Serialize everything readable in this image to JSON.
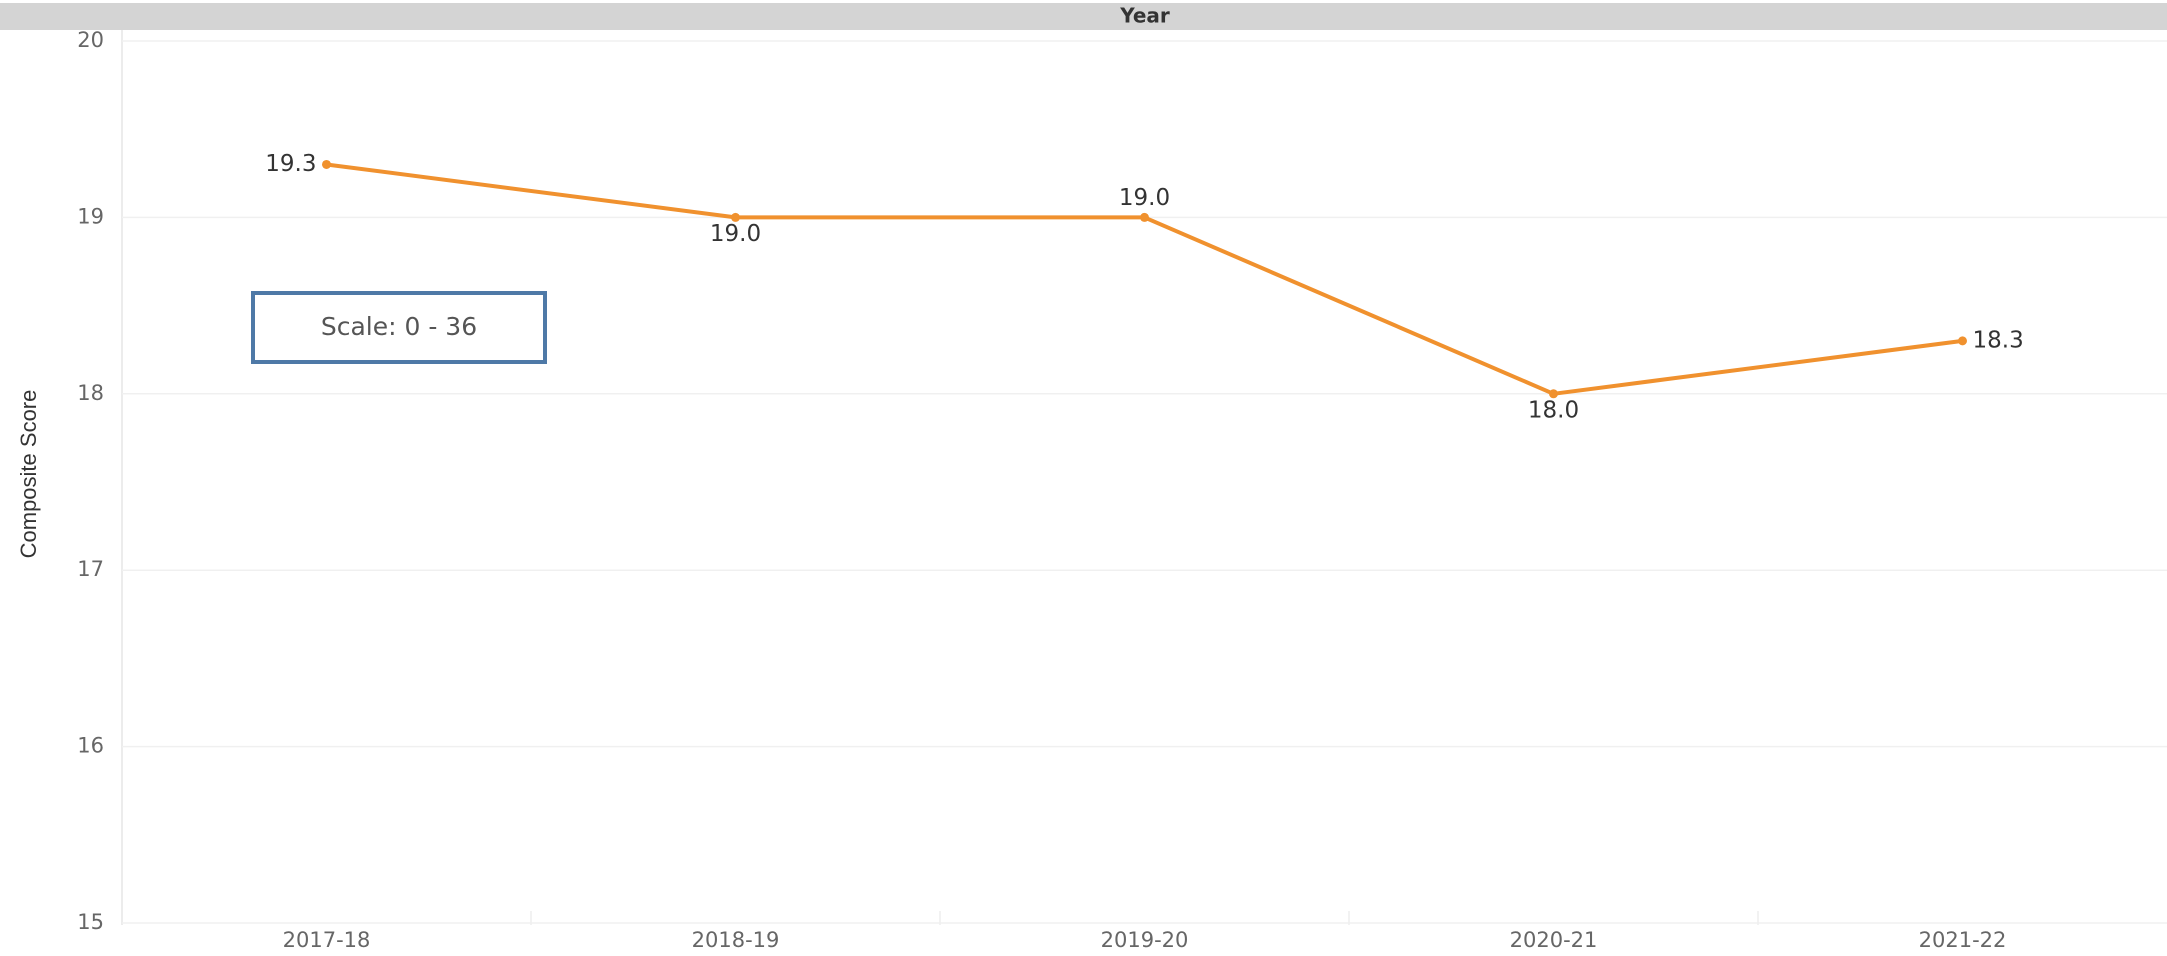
{
  "chart_data": {
    "type": "line",
    "x_axis_title": "Year",
    "y_axis_title": "Composite Score",
    "annotation": "Scale: 0 - 36",
    "categories": [
      "2017-18",
      "2018-19",
      "2019-20",
      "2020-21",
      "2021-22"
    ],
    "values": [
      19.3,
      19.0,
      19.0,
      18.0,
      18.3
    ],
    "value_labels": [
      "19.3",
      "19.0",
      "19.0",
      "18.0",
      "18.3"
    ],
    "color": "#f0912e",
    "ylim": [
      15,
      20
    ],
    "yticks": [
      15,
      16,
      17,
      18,
      19,
      20
    ],
    "grid": true
  }
}
